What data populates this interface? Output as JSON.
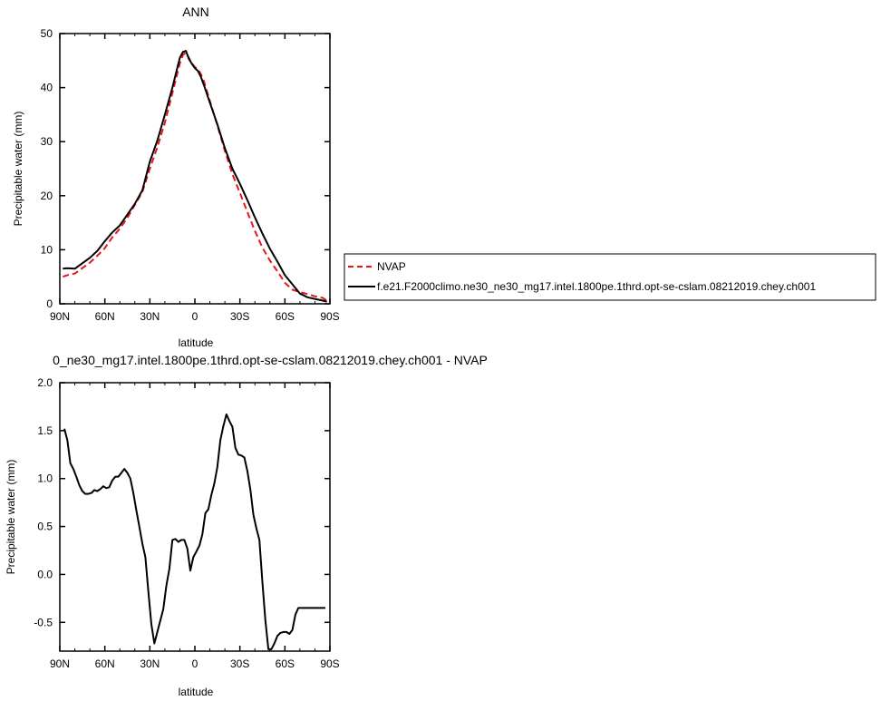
{
  "chart_data": [
    {
      "type": "line",
      "title": "ANN",
      "xlabel": "latitude",
      "ylabel": "Precipitable water (mm)",
      "xlim": [
        90,
        -90
      ],
      "ylim": [
        0,
        50
      ],
      "x_ticks": [
        {
          "value": 90,
          "label": "90N"
        },
        {
          "value": 60,
          "label": "60N"
        },
        {
          "value": 30,
          "label": "30N"
        },
        {
          "value": 0,
          "label": "0"
        },
        {
          "value": -30,
          "label": "30S"
        },
        {
          "value": -60,
          "label": "60S"
        },
        {
          "value": -90,
          "label": "90S"
        }
      ],
      "y_ticks": [
        {
          "value": 0,
          "label": "0"
        },
        {
          "value": 10,
          "label": "10"
        },
        {
          "value": 20,
          "label": "20"
        },
        {
          "value": 30,
          "label": "30"
        },
        {
          "value": 40,
          "label": "40"
        },
        {
          "value": 50,
          "label": "50"
        }
      ],
      "legend_position": "right",
      "series": [
        {
          "name": "NVAP",
          "color": "#e8141b",
          "dash": "dashed",
          "x": [
            88,
            85,
            80,
            75,
            70,
            65,
            60,
            55,
            50,
            45,
            40,
            35,
            30,
            25,
            20,
            15,
            10,
            8,
            6,
            4,
            2,
            0,
            -2,
            -4,
            -6,
            -10,
            -15,
            -20,
            -25,
            -30,
            -35,
            -40,
            -45,
            -50,
            -55,
            -60,
            -65,
            -70,
            -75,
            -80,
            -85,
            -88
          ],
          "y": [
            5.0,
            5.3,
            5.6,
            6.6,
            7.6,
            8.9,
            10.3,
            12.3,
            13.9,
            15.9,
            18.3,
            20.7,
            25.0,
            29.0,
            33.5,
            39.0,
            44.5,
            46.0,
            46.5,
            45.5,
            44.5,
            43.8,
            43.4,
            42.5,
            41.2,
            37.5,
            33.0,
            28.3,
            24.0,
            20.5,
            17.0,
            13.5,
            10.4,
            8.0,
            6.0,
            3.9,
            2.6,
            2.2,
            1.8,
            1.4,
            1.1,
            0.6
          ]
        },
        {
          "name": "f.e21.F2000climo.ne30_ne30_mg17.intel.1800pe.1thrd.opt-se-cslam.08212019.chey.ch001",
          "color": "#000000",
          "dash": "solid",
          "x": [
            88,
            85,
            80,
            75,
            70,
            65,
            60,
            55,
            50,
            45,
            40,
            35,
            30,
            25,
            20,
            15,
            10,
            8,
            6,
            4,
            2,
            0,
            -2,
            -4,
            -6,
            -10,
            -15,
            -20,
            -25,
            -30,
            -35,
            -40,
            -45,
            -50,
            -55,
            -60,
            -65,
            -70,
            -75,
            -80,
            -85,
            -88
          ],
          "y": [
            6.5,
            6.6,
            6.5,
            7.5,
            8.5,
            9.8,
            11.6,
            13.2,
            14.5,
            16.5,
            18.5,
            21.0,
            26.3,
            30.2,
            35.0,
            40.0,
            45.5,
            46.6,
            46.8,
            45.3,
            44.4,
            43.6,
            43.1,
            42.0,
            40.5,
            37.2,
            33.2,
            28.8,
            25.0,
            22.2,
            19.2,
            16.0,
            13.0,
            10.2,
            7.8,
            5.3,
            3.6,
            1.9,
            1.2,
            0.9,
            0.6,
            0.4
          ]
        }
      ]
    },
    {
      "type": "line",
      "title": "0_ne30_mg17.intel.1800pe.1thrd.opt-se-cslam.08212019.chey.ch001 - NVAP",
      "xlabel": "latitude",
      "ylabel": "Precipitable water (mm)",
      "xlim": [
        90,
        -90
      ],
      "ylim": [
        -0.8,
        2.0
      ],
      "x_ticks": [
        {
          "value": 90,
          "label": "90N"
        },
        {
          "value": 60,
          "label": "60N"
        },
        {
          "value": 30,
          "label": "30N"
        },
        {
          "value": 0,
          "label": "0"
        },
        {
          "value": -30,
          "label": "30S"
        },
        {
          "value": -60,
          "label": "60S"
        },
        {
          "value": -90,
          "label": "90S"
        }
      ],
      "y_ticks": [
        {
          "value": -0.5,
          "label": "-0.5"
        },
        {
          "value": 0.0,
          "label": "0.0"
        },
        {
          "value": 0.5,
          "label": "0.5"
        },
        {
          "value": 1.0,
          "label": "1.0"
        },
        {
          "value": 1.5,
          "label": "1.5"
        },
        {
          "value": 2.0,
          "label": "2.0"
        }
      ],
      "series": [
        {
          "color": "#000000",
          "dash": "solid",
          "x": [
            87,
            85,
            83,
            81,
            79,
            77,
            75,
            73,
            71,
            69,
            67,
            65,
            63,
            61,
            59,
            57,
            55,
            53,
            51,
            49,
            47,
            45,
            43,
            41,
            39,
            37,
            35,
            33,
            31,
            29,
            27,
            25,
            23,
            21,
            19,
            17,
            15,
            13,
            11,
            9,
            7,
            5,
            3,
            1,
            -1,
            -3,
            -5,
            -7,
            -9,
            -11,
            -13,
            -15,
            -17,
            -19,
            -21,
            -23,
            -25,
            -27,
            -29,
            -31,
            -33,
            -35,
            -37,
            -39,
            -41,
            -43,
            -45,
            -47,
            -49,
            -51,
            -53,
            -55,
            -57,
            -59,
            -61,
            -63,
            -65,
            -67,
            -69,
            -71,
            -73,
            -75,
            -77,
            -79,
            -81,
            -83,
            -85,
            -87
          ],
          "y": [
            1.52,
            1.4,
            1.16,
            1.1,
            1.02,
            0.93,
            0.87,
            0.84,
            0.84,
            0.85,
            0.88,
            0.87,
            0.89,
            0.92,
            0.9,
            0.91,
            0.98,
            1.02,
            1.02,
            1.06,
            1.1,
            1.06,
            1.0,
            0.85,
            0.67,
            0.5,
            0.32,
            0.18,
            -0.18,
            -0.52,
            -0.72,
            -0.6,
            -0.48,
            -0.36,
            -0.12,
            0.06,
            0.36,
            0.37,
            0.34,
            0.36,
            0.36,
            0.27,
            0.04,
            0.18,
            0.24,
            0.3,
            0.42,
            0.64,
            0.68,
            0.83,
            0.95,
            1.12,
            1.4,
            1.55,
            1.67,
            1.6,
            1.54,
            1.32,
            1.25,
            1.24,
            1.22,
            1.08,
            0.88,
            0.62,
            0.48,
            0.36,
            -0.08,
            -0.48,
            -0.78,
            -0.78,
            -0.72,
            -0.64,
            -0.61,
            -0.6,
            -0.6,
            -0.62,
            -0.58,
            -0.42,
            -0.35,
            -0.35,
            -0.35,
            -0.35,
            -0.35,
            -0.35,
            -0.35,
            -0.35,
            -0.35,
            -0.35
          ]
        }
      ]
    }
  ]
}
